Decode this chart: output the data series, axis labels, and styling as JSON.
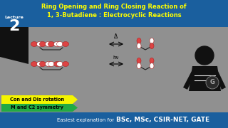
{
  "title_line1": "Ring Opening and Ring Closing Reaction of",
  "title_line2": "1, 3-Butadiene : Electrocyclic Reactions",
  "title_bg": "#1a5f9e",
  "title_color": "#ffff00",
  "lecture_label": "Lecture",
  "lecture_num": "2",
  "lecture_bg": "#111111",
  "middle_bg": "#909090",
  "tag1_text": "Con and Dis rotation",
  "tag1_bg": "#f5f500",
  "tag1_fg": "#000000",
  "tag2_text": "M and C2 symmetry",
  "tag2_bg": "#22aa44",
  "tag2_fg": "#000000",
  "bottom_bg": "#1a5f9e",
  "bottom_color": "#ffffff",
  "bottom_normal": "Easiest explanation for ",
  "bottom_bold": "BSc, MSc, CSIR-NET, GATE",
  "arrow1_label": "Δ",
  "arrow2_label": "hν",
  "orbital_red": "#dd4444",
  "orbital_white": "#ffffff",
  "orbital_edge": "#aa2222",
  "line_color": "#222222"
}
